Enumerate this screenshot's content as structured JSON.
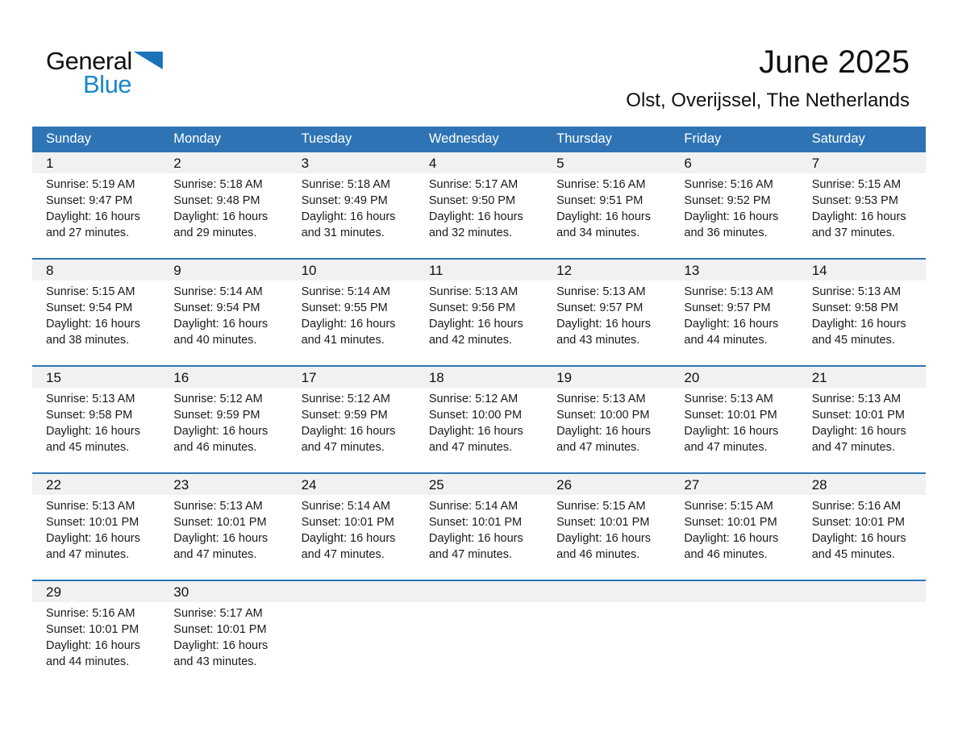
{
  "logo": {
    "general": "General",
    "blue": "Blue",
    "triangle_icon": "blue-right-triangle"
  },
  "header": {
    "title": "June 2025",
    "subtitle": "Olst, Overijssel, The Netherlands"
  },
  "weekday_headers": [
    "Sunday",
    "Monday",
    "Tuesday",
    "Wednesday",
    "Thursday",
    "Friday",
    "Saturday"
  ],
  "colors": {
    "header_bar_blue": "#2E74B5",
    "week_divider_blue": "#2E74B5",
    "day_number_stripe_gray": "#F1F1F1",
    "weekday_text": "#FFFFFF",
    "logo_text_blue": "#1787C9",
    "logo_triangle_blue": "#1A72B8"
  },
  "weeks": [
    [
      {
        "day": "1",
        "sunrise": "Sunrise: 5:19 AM",
        "sunset": "Sunset: 9:47 PM",
        "daylight": "Daylight: 16 hours and 27 minutes."
      },
      {
        "day": "2",
        "sunrise": "Sunrise: 5:18 AM",
        "sunset": "Sunset: 9:48 PM",
        "daylight": "Daylight: 16 hours and 29 minutes."
      },
      {
        "day": "3",
        "sunrise": "Sunrise: 5:18 AM",
        "sunset": "Sunset: 9:49 PM",
        "daylight": "Daylight: 16 hours and 31 minutes."
      },
      {
        "day": "4",
        "sunrise": "Sunrise: 5:17 AM",
        "sunset": "Sunset: 9:50 PM",
        "daylight": "Daylight: 16 hours and 32 minutes."
      },
      {
        "day": "5",
        "sunrise": "Sunrise: 5:16 AM",
        "sunset": "Sunset: 9:51 PM",
        "daylight": "Daylight: 16 hours and 34 minutes."
      },
      {
        "day": "6",
        "sunrise": "Sunrise: 5:16 AM",
        "sunset": "Sunset: 9:52 PM",
        "daylight": "Daylight: 16 hours and 36 minutes."
      },
      {
        "day": "7",
        "sunrise": "Sunrise: 5:15 AM",
        "sunset": "Sunset: 9:53 PM",
        "daylight": "Daylight: 16 hours and 37 minutes."
      }
    ],
    [
      {
        "day": "8",
        "sunrise": "Sunrise: 5:15 AM",
        "sunset": "Sunset: 9:54 PM",
        "daylight": "Daylight: 16 hours and 38 minutes."
      },
      {
        "day": "9",
        "sunrise": "Sunrise: 5:14 AM",
        "sunset": "Sunset: 9:54 PM",
        "daylight": "Daylight: 16 hours and 40 minutes."
      },
      {
        "day": "10",
        "sunrise": "Sunrise: 5:14 AM",
        "sunset": "Sunset: 9:55 PM",
        "daylight": "Daylight: 16 hours and 41 minutes."
      },
      {
        "day": "11",
        "sunrise": "Sunrise: 5:13 AM",
        "sunset": "Sunset: 9:56 PM",
        "daylight": "Daylight: 16 hours and 42 minutes."
      },
      {
        "day": "12",
        "sunrise": "Sunrise: 5:13 AM",
        "sunset": "Sunset: 9:57 PM",
        "daylight": "Daylight: 16 hours and 43 minutes."
      },
      {
        "day": "13",
        "sunrise": "Sunrise: 5:13 AM",
        "sunset": "Sunset: 9:57 PM",
        "daylight": "Daylight: 16 hours and 44 minutes."
      },
      {
        "day": "14",
        "sunrise": "Sunrise: 5:13 AM",
        "sunset": "Sunset: 9:58 PM",
        "daylight": "Daylight: 16 hours and 45 minutes."
      }
    ],
    [
      {
        "day": "15",
        "sunrise": "Sunrise: 5:13 AM",
        "sunset": "Sunset: 9:58 PM",
        "daylight": "Daylight: 16 hours and 45 minutes."
      },
      {
        "day": "16",
        "sunrise": "Sunrise: 5:12 AM",
        "sunset": "Sunset: 9:59 PM",
        "daylight": "Daylight: 16 hours and 46 minutes."
      },
      {
        "day": "17",
        "sunrise": "Sunrise: 5:12 AM",
        "sunset": "Sunset: 9:59 PM",
        "daylight": "Daylight: 16 hours and 47 minutes."
      },
      {
        "day": "18",
        "sunrise": "Sunrise: 5:12 AM",
        "sunset": "Sunset: 10:00 PM",
        "daylight": "Daylight: 16 hours and 47 minutes."
      },
      {
        "day": "19",
        "sunrise": "Sunrise: 5:13 AM",
        "sunset": "Sunset: 10:00 PM",
        "daylight": "Daylight: 16 hours and 47 minutes."
      },
      {
        "day": "20",
        "sunrise": "Sunrise: 5:13 AM",
        "sunset": "Sunset: 10:01 PM",
        "daylight": "Daylight: 16 hours and 47 minutes."
      },
      {
        "day": "21",
        "sunrise": "Sunrise: 5:13 AM",
        "sunset": "Sunset: 10:01 PM",
        "daylight": "Daylight: 16 hours and 47 minutes."
      }
    ],
    [
      {
        "day": "22",
        "sunrise": "Sunrise: 5:13 AM",
        "sunset": "Sunset: 10:01 PM",
        "daylight": "Daylight: 16 hours and 47 minutes."
      },
      {
        "day": "23",
        "sunrise": "Sunrise: 5:13 AM",
        "sunset": "Sunset: 10:01 PM",
        "daylight": "Daylight: 16 hours and 47 minutes."
      },
      {
        "day": "24",
        "sunrise": "Sunrise: 5:14 AM",
        "sunset": "Sunset: 10:01 PM",
        "daylight": "Daylight: 16 hours and 47 minutes."
      },
      {
        "day": "25",
        "sunrise": "Sunrise: 5:14 AM",
        "sunset": "Sunset: 10:01 PM",
        "daylight": "Daylight: 16 hours and 47 minutes."
      },
      {
        "day": "26",
        "sunrise": "Sunrise: 5:15 AM",
        "sunset": "Sunset: 10:01 PM",
        "daylight": "Daylight: 16 hours and 46 minutes."
      },
      {
        "day": "27",
        "sunrise": "Sunrise: 5:15 AM",
        "sunset": "Sunset: 10:01 PM",
        "daylight": "Daylight: 16 hours and 46 minutes."
      },
      {
        "day": "28",
        "sunrise": "Sunrise: 5:16 AM",
        "sunset": "Sunset: 10:01 PM",
        "daylight": "Daylight: 16 hours and 45 minutes."
      }
    ],
    [
      {
        "day": "29",
        "sunrise": "Sunrise: 5:16 AM",
        "sunset": "Sunset: 10:01 PM",
        "daylight": "Daylight: 16 hours and 44 minutes."
      },
      {
        "day": "30",
        "sunrise": "Sunrise: 5:17 AM",
        "sunset": "Sunset: 10:01 PM",
        "daylight": "Daylight: 16 hours and 43 minutes."
      },
      null,
      null,
      null,
      null,
      null
    ]
  ]
}
